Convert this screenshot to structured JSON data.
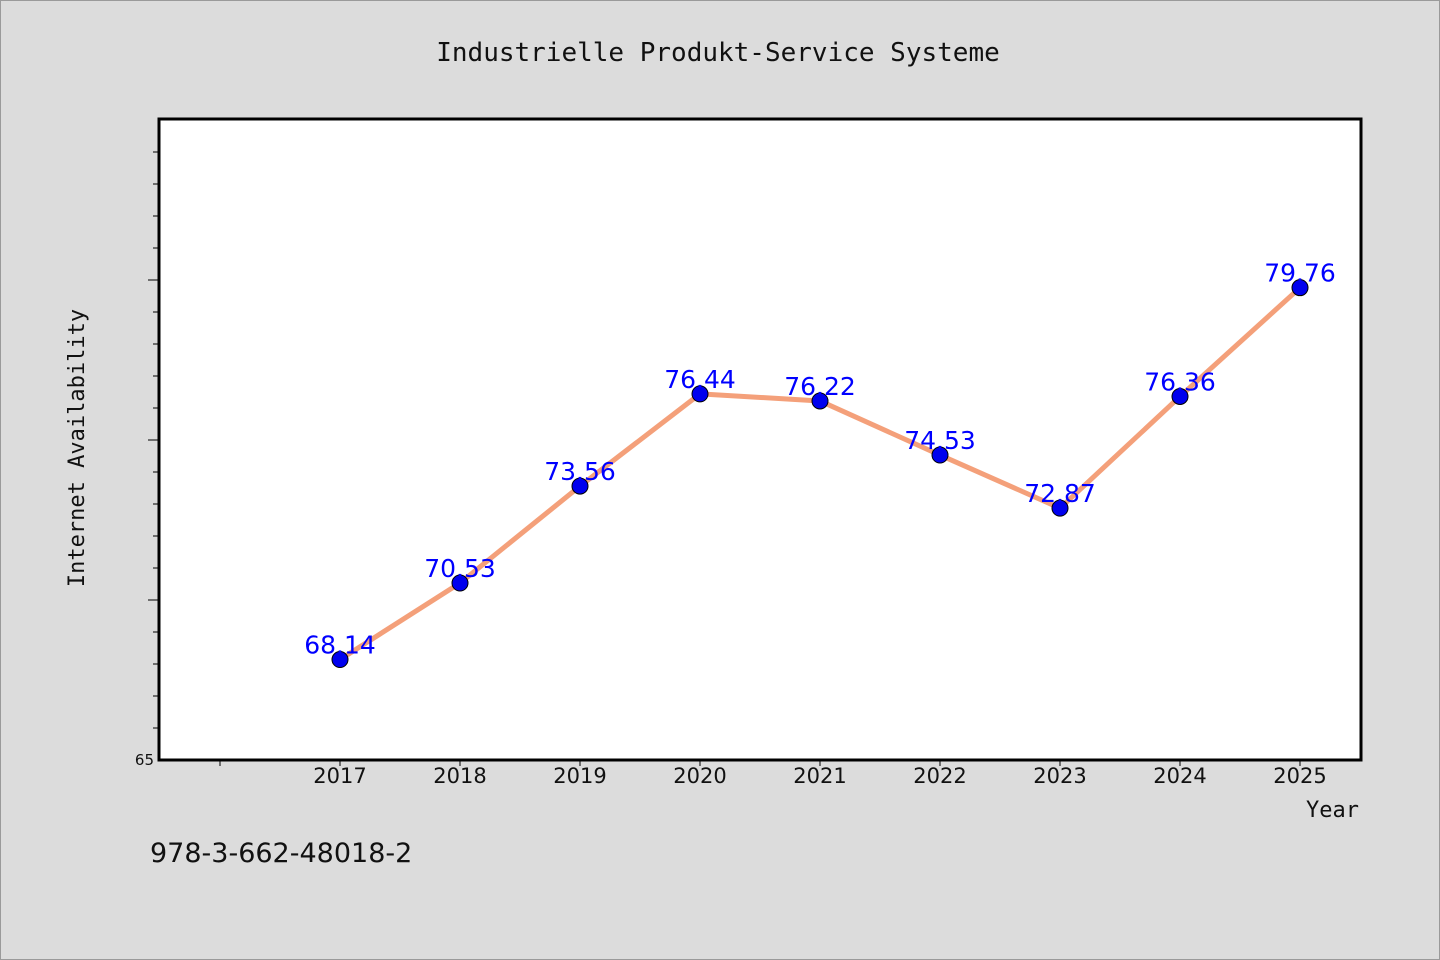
{
  "chart_data": {
    "type": "line",
    "title": "Industrielle Produkt-Service Systeme",
    "xlabel": "Year",
    "ylabel": "Internet Availability",
    "categories": [
      "2017",
      "2018",
      "2019",
      "2020",
      "2021",
      "2022",
      "2023",
      "2024",
      "2025"
    ],
    "series": [
      {
        "values": [
          68.14,
          70.53,
          73.56,
          76.44,
          76.22,
          74.53,
          72.87,
          76.36,
          79.76
        ],
        "labels": [
          "68.14",
          "70.53",
          "73.56",
          "76.44",
          "76.22",
          "74.53",
          "72.87",
          "76.36",
          "79.76"
        ]
      }
    ],
    "ylim": [
      65,
      85
    ],
    "y_tick_labels": [
      "65"
    ],
    "line_color": "#f4a07a",
    "marker_color": "#0000ee",
    "label_color": "#0000ff",
    "grid": false,
    "legend": "none"
  },
  "footer": {
    "isbn": "978-3-662-48018-2"
  }
}
